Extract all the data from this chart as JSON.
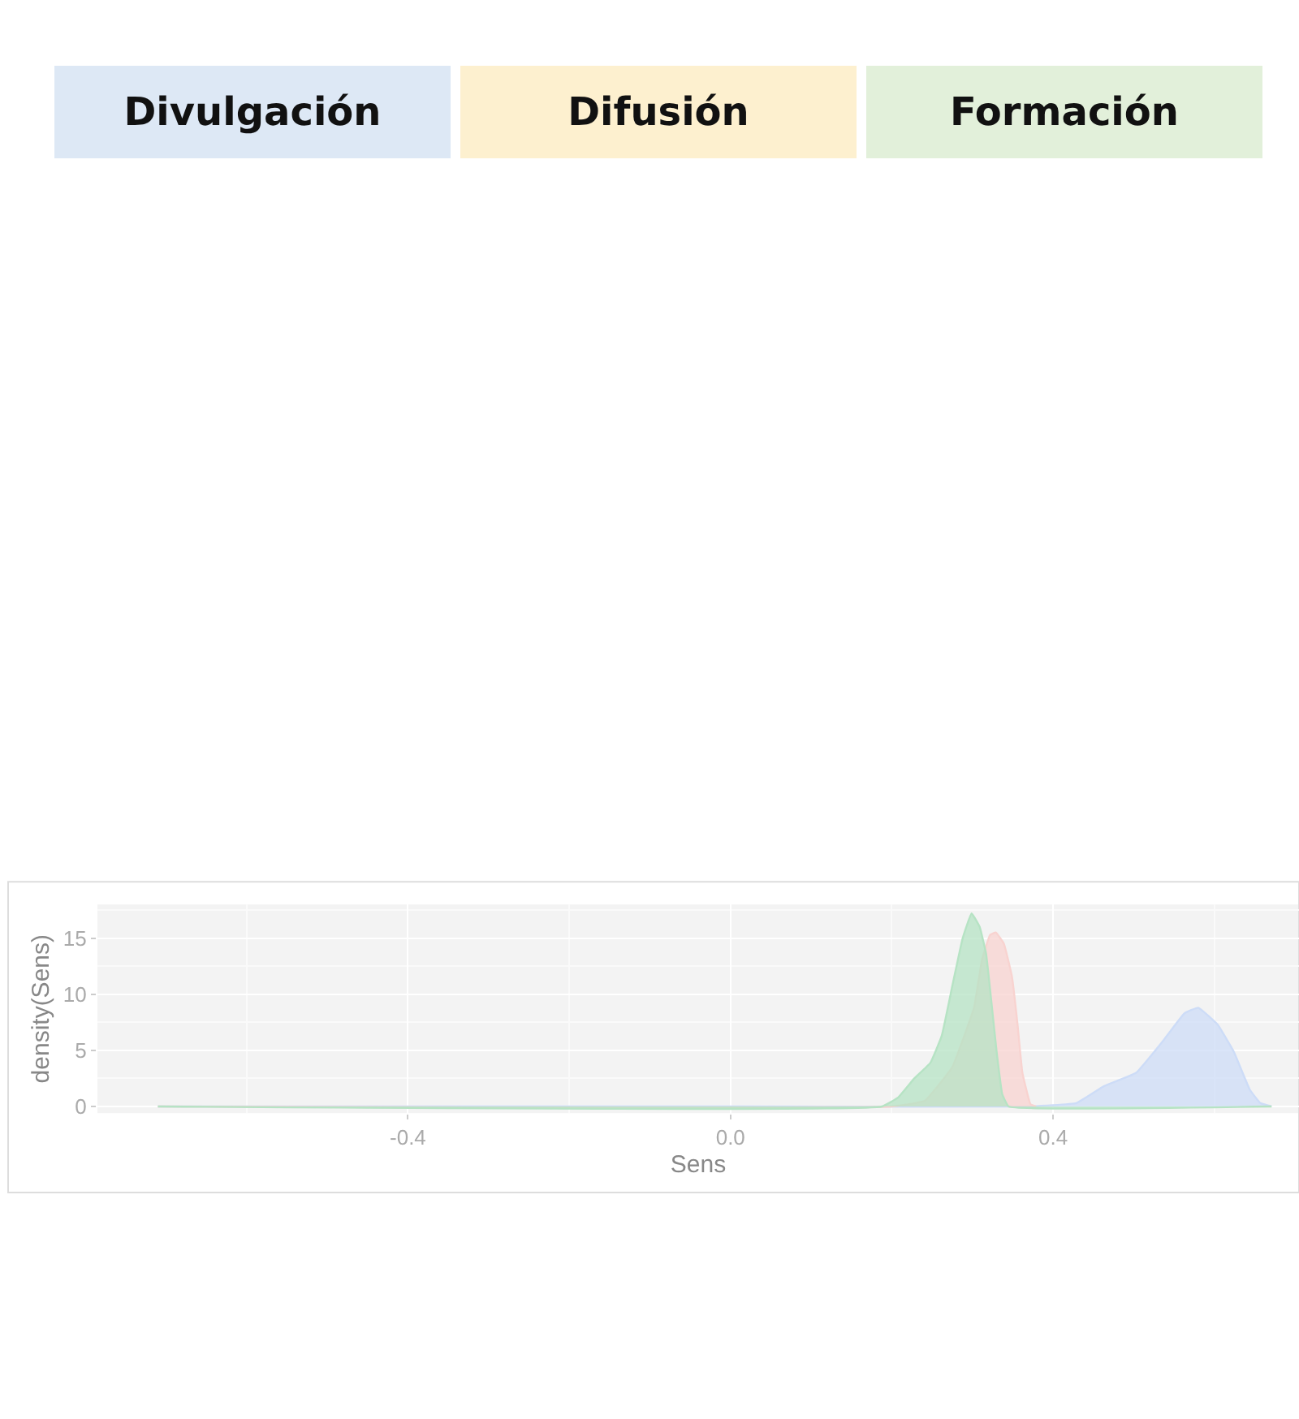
{
  "chart_data": {
    "type": "area",
    "xlabel": "Sens",
    "ylabel": "density(Sens)",
    "annotations": [
      "Divulgación",
      "Difusión",
      "Formación"
    ],
    "xlim": [
      -0.785,
      0.705
    ],
    "ylim": [
      -0.6,
      18.0
    ],
    "xticks": [
      {
        "value": -0.4,
        "label": "-0.4"
      },
      {
        "value": 0,
        "label": "0.0"
      },
      {
        "value": 0.4,
        "label": "0.4"
      }
    ],
    "yticks": [
      0,
      5,
      10,
      15
    ],
    "grid": true,
    "series": [
      {
        "color": "#cddcf7",
        "x": [
          -0.71,
          0.0,
          0.368,
          0.429,
          0.463,
          0.503,
          0.537,
          0.563,
          0.58,
          0.604,
          0.624,
          0.644,
          0.657,
          0.671
        ],
        "values": [
          0,
          0,
          0,
          0.3,
          1.8,
          3.0,
          5.9,
          8.3,
          8.8,
          7.3,
          4.9,
          1.5,
          0.3,
          0
        ]
      },
      {
        "color": "#f8d3d0",
        "x": [
          -0.71,
          0.2,
          0.241,
          0.275,
          0.302,
          0.312,
          0.322,
          0.329,
          0.339,
          0.349,
          0.356,
          0.362,
          0.372,
          0.379
        ],
        "values": [
          0,
          0,
          0.5,
          3.5,
          8.8,
          13.1,
          15.3,
          15.5,
          14.5,
          11.6,
          7.3,
          3.0,
          0.2,
          0
        ]
      },
      {
        "color": "#b6e3c4",
        "x": [
          -0.71,
          0.188,
          0.208,
          0.228,
          0.248,
          0.262,
          0.275,
          0.288,
          0.299,
          0.309,
          0.317,
          0.323,
          0.33,
          0.337,
          0.345,
          0.671
        ],
        "values": [
          0,
          0,
          0.8,
          2.5,
          3.9,
          6.3,
          10.7,
          15.0,
          17.2,
          16.0,
          13.6,
          9.7,
          4.9,
          1.1,
          0,
          0
        ]
      }
    ]
  }
}
